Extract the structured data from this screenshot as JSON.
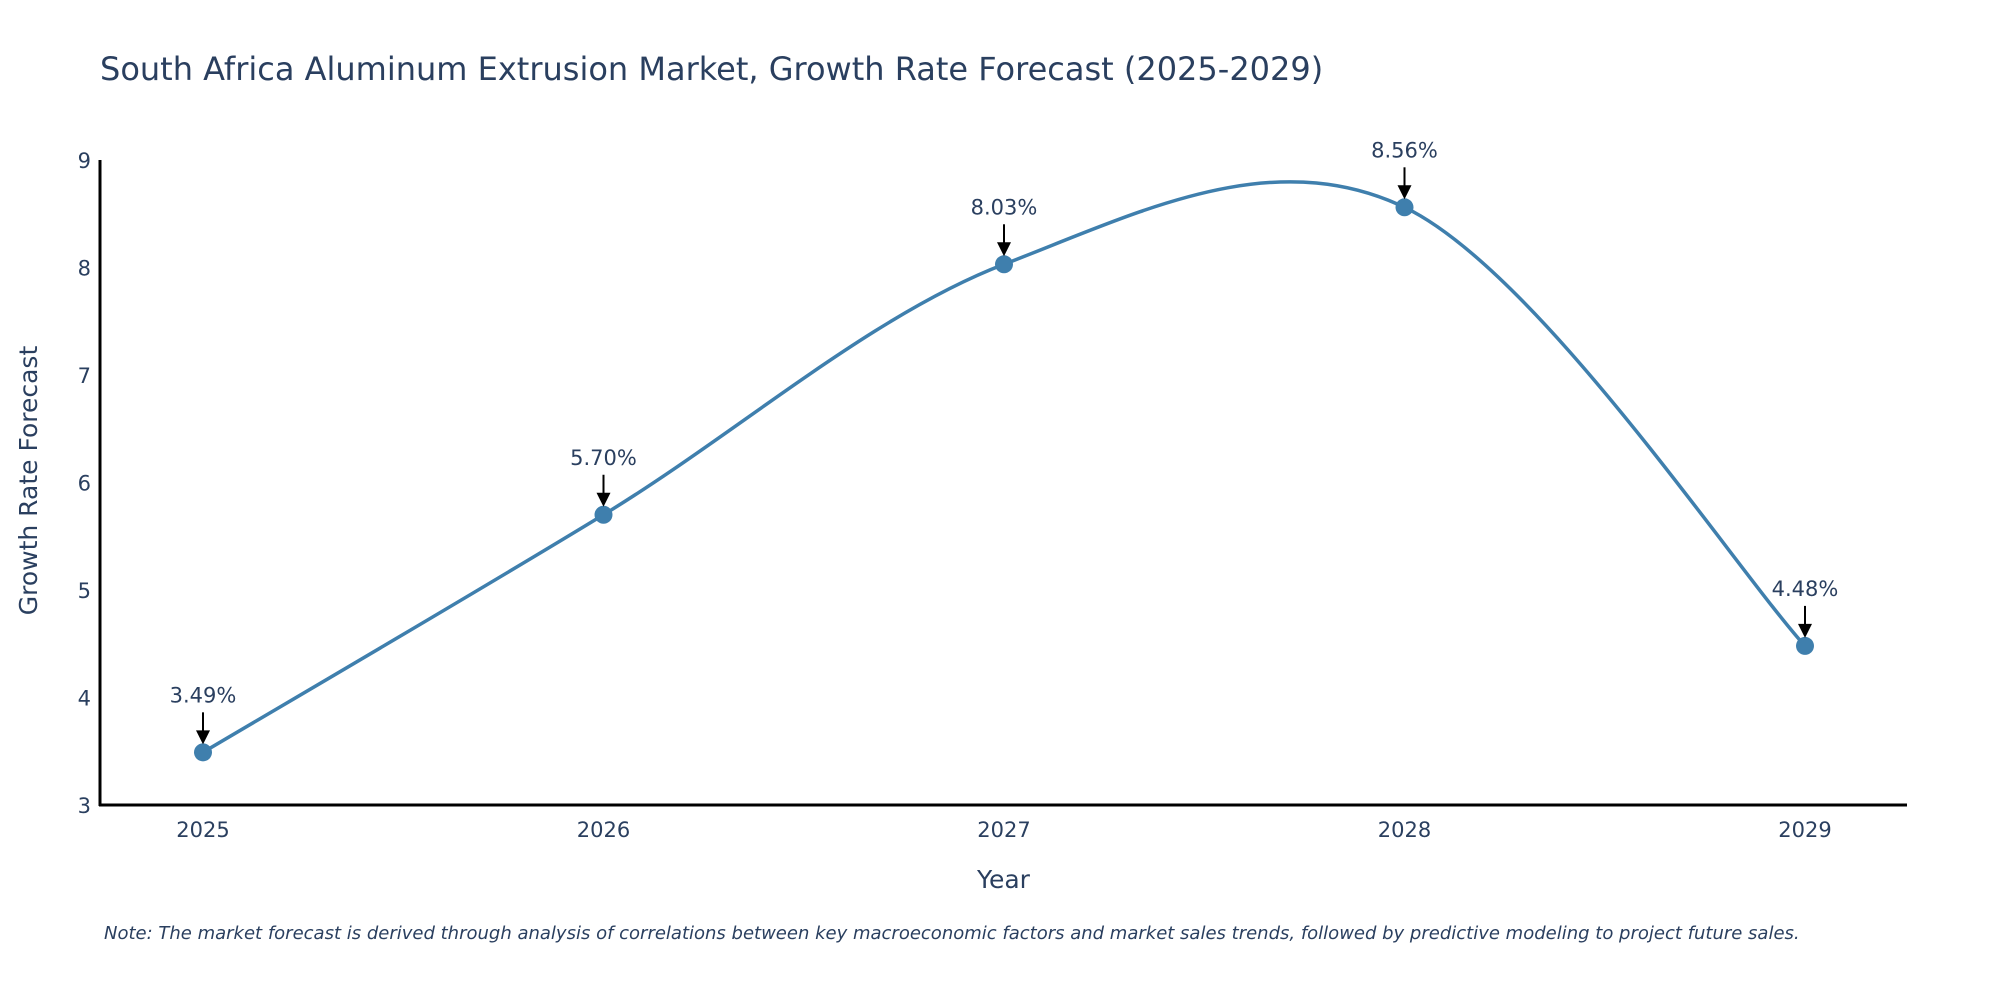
{
  "colors": {
    "series": "#3f7fad",
    "marker": "#3f7fad",
    "axis": "#000000",
    "arrow": "#000000"
  },
  "chart_data": {
    "type": "line",
    "title": "South Africa Aluminum Extrusion Market, Growth Rate Forecast (2025-2029)",
    "xlabel": "Year",
    "ylabel": "Growth Rate Forecast",
    "categories": [
      "2025",
      "2026",
      "2027",
      "2028",
      "2029"
    ],
    "series": [
      {
        "name": "Growth Rate Forecast",
        "values": [
          3.49,
          5.7,
          8.03,
          8.56,
          4.48
        ],
        "labels": [
          "3.49%",
          "5.70%",
          "8.03%",
          "8.56%",
          "4.48%"
        ]
      }
    ],
    "ylim": [
      3,
      9
    ],
    "yticks": [
      "3",
      "4",
      "5",
      "6",
      "7",
      "8",
      "9"
    ],
    "line_shape": "spline",
    "grid": false,
    "note": "Note: The market forecast is derived through analysis of correlations between key macroeconomic factors and market sales trends, followed by predictive modeling to project future sales."
  }
}
